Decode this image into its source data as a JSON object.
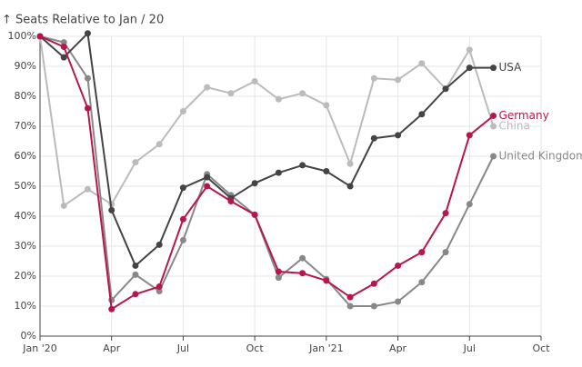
{
  "chart_data": {
    "type": "line",
    "title": "↑ Seats Relative to Jan / 20",
    "x": [
      "2020-01",
      "2020-02",
      "2020-03",
      "2020-04",
      "2020-05",
      "2020-06",
      "2020-07",
      "2020-08",
      "2020-09",
      "2020-10",
      "2020-11",
      "2020-12",
      "2021-01",
      "2021-02",
      "2021-03",
      "2021-04",
      "2021-05",
      "2021-06",
      "2021-07",
      "2021-08"
    ],
    "xlim": [
      "2020-01",
      "2021-10"
    ],
    "xticks": [
      {
        "value": "2020-01",
        "label": "Jan '20"
      },
      {
        "value": "2020-04",
        "label": "Apr"
      },
      {
        "value": "2020-07",
        "label": "Jul"
      },
      {
        "value": "2020-10",
        "label": "Oct"
      },
      {
        "value": "2021-01",
        "label": "Jan '21"
      },
      {
        "value": "2021-04",
        "label": "Apr"
      },
      {
        "value": "2021-07",
        "label": "Jul"
      },
      {
        "value": "2021-10",
        "label": "Oct"
      }
    ],
    "ylim": [
      0,
      100
    ],
    "yticks": [
      {
        "value": 0,
        "label": "0%"
      },
      {
        "value": 10,
        "label": "10%"
      },
      {
        "value": 20,
        "label": "20%"
      },
      {
        "value": 30,
        "label": "30%"
      },
      {
        "value": 40,
        "label": "40%"
      },
      {
        "value": 50,
        "label": "50%"
      },
      {
        "value": 60,
        "label": "60%"
      },
      {
        "value": 70,
        "label": "70%"
      },
      {
        "value": 80,
        "label": "80%"
      },
      {
        "value": 90,
        "label": "90%"
      },
      {
        "value": 100,
        "label": "100%"
      }
    ],
    "grid": true,
    "series": [
      {
        "name": "China",
        "color": "#bbbbbb",
        "values": [
          100,
          43.5,
          49,
          44,
          58,
          64,
          75,
          83,
          81,
          85,
          79,
          81,
          77,
          57.5,
          86,
          85.5,
          91,
          82.5,
          95.5,
          70
        ]
      },
      {
        "name": "United Kingdom",
        "color": "#888888",
        "values": [
          100,
          98,
          86,
          12,
          20.5,
          15,
          32,
          54,
          47,
          40.5,
          19.5,
          26,
          19,
          10,
          10,
          11.5,
          18,
          28,
          44,
          60
        ]
      },
      {
        "name": "USA",
        "color": "#444444",
        "values": [
          100,
          93,
          101,
          42,
          23.5,
          30.5,
          49.5,
          53,
          46,
          51,
          54.5,
          57,
          55,
          50,
          66,
          67,
          74,
          82.5,
          89.5,
          89.5
        ]
      },
      {
        "name": "Germany",
        "color": "#b5174b",
        "values": [
          100,
          96.5,
          76,
          9,
          14,
          16.5,
          39,
          50,
          45,
          40.5,
          21.5,
          21,
          18.5,
          13,
          17.5,
          23.5,
          28,
          41,
          67,
          73.5
        ]
      }
    ]
  }
}
